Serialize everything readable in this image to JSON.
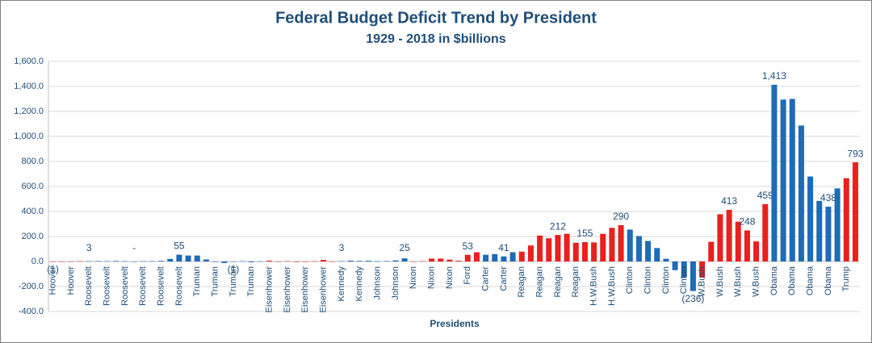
{
  "chart_data": {
    "type": "bar",
    "title": "Federal Budget Deficit Trend by President",
    "subtitle": "1929 - 2018 in $billions",
    "x_label": "Presidents",
    "categories": [
      "Hoover",
      null,
      "Hoover",
      null,
      "Roosevelt",
      null,
      "Roosevelt",
      null,
      "Roosevelt",
      null,
      "Roosevelt",
      null,
      "Roosevelt",
      null,
      "Roosevelt",
      null,
      "Truman",
      null,
      "Truman",
      null,
      "Truman",
      null,
      "Truman",
      null,
      "Eisenhower",
      null,
      "Eisenhower",
      null,
      "Eisenhower",
      null,
      "Eisenhower",
      null,
      "Kennedy",
      null,
      "Kennedy",
      null,
      "Johnson",
      null,
      "Johnson",
      null,
      "Nixon",
      null,
      "Nixon",
      null,
      "Nixon",
      null,
      "Ford",
      null,
      "Carter",
      null,
      "Carter",
      null,
      "Reagan",
      null,
      "Reagan",
      null,
      "Reagan",
      null,
      "Reagan",
      null,
      "H.W.Bush",
      null,
      "H.W.Bush",
      null,
      "Clinton",
      null,
      "Clinton",
      null,
      "Clinton",
      null,
      "Clinton",
      null,
      "W.Bush",
      null,
      "W.Bush",
      null,
      "W.Bush",
      null,
      "W.Bush",
      null,
      "Obama",
      null,
      "Obama",
      null,
      "Obama",
      null,
      "Obama",
      null,
      "Trump",
      null
    ],
    "values": [
      -0.7,
      -0.7,
      0.5,
      2.7,
      2.6,
      3.6,
      2.8,
      4.3,
      2.2,
      0.1,
      2.8,
      2.9,
      4.9,
      20.5,
      54.6,
      47.6,
      47.6,
      15.9,
      -4.0,
      -11.8,
      -0.6,
      3.1,
      -6.1,
      1.5,
      6.5,
      1.2,
      3.0,
      -3.9,
      -3.4,
      2.8,
      12.8,
      -0.3,
      3.3,
      7.1,
      4.8,
      5.9,
      1.4,
      3.7,
      8.6,
      25.2,
      -3.2,
      2.8,
      23.0,
      23.4,
      14.9,
      6.1,
      53.2,
      73.7,
      53.7,
      59.2,
      40.7,
      73.8,
      79.0,
      128.0,
      207.8,
      185.4,
      212.3,
      221.2,
      149.7,
      155.2,
      152.6,
      221.0,
      269.2,
      290.3,
      255.1,
      203.2,
      164.0,
      107.4,
      21.9,
      -69.3,
      -125.6,
      -236.2,
      -128.2,
      157.8,
      377.6,
      412.7,
      318.3,
      248.2,
      160.7,
      458.6,
      1412.7,
      1294.4,
      1299.6,
      1087.0,
      679.5,
      484.6,
      438.4,
      584.7,
      665.4,
      793
    ],
    "value_labels": [
      "(1)",
      null,
      null,
      null,
      "3",
      null,
      null,
      null,
      null,
      "-",
      null,
      null,
      null,
      null,
      "55",
      null,
      null,
      null,
      null,
      null,
      "(1)",
      null,
      null,
      null,
      null,
      null,
      null,
      null,
      null,
      null,
      null,
      null,
      "3",
      null,
      null,
      null,
      null,
      null,
      null,
      "25",
      null,
      null,
      null,
      null,
      null,
      null,
      "53",
      null,
      null,
      null,
      "41",
      null,
      null,
      null,
      null,
      null,
      "212",
      null,
      null,
      "155",
      null,
      null,
      null,
      "290",
      null,
      null,
      null,
      null,
      null,
      null,
      null,
      "(236)",
      null,
      null,
      null,
      "413",
      null,
      "248",
      null,
      "459",
      "1,413",
      null,
      null,
      null,
      null,
      null,
      "438",
      null,
      null,
      "793"
    ],
    "colors": [
      "#e8201e",
      "#e8201e",
      "#e8201e",
      "#e8201e",
      "#1e6bb8",
      "#1e6bb8",
      "#1e6bb8",
      "#1e6bb8",
      "#1e6bb8",
      "#1e6bb8",
      "#1e6bb8",
      "#1e6bb8",
      "#1e6bb8",
      "#1e6bb8",
      "#1e6bb8",
      "#1e6bb8",
      "#1e6bb8",
      "#1e6bb8",
      "#1e6bb8",
      "#1e6bb8",
      "#1e6bb8",
      "#1e6bb8",
      "#1e6bb8",
      "#1e6bb8",
      "#e8201e",
      "#e8201e",
      "#e8201e",
      "#e8201e",
      "#e8201e",
      "#e8201e",
      "#e8201e",
      "#e8201e",
      "#1e6bb8",
      "#1e6bb8",
      "#1e6bb8",
      "#1e6bb8",
      "#1e6bb8",
      "#1e6bb8",
      "#1e6bb8",
      "#1e6bb8",
      "#e8201e",
      "#e8201e",
      "#e8201e",
      "#e8201e",
      "#e8201e",
      "#e8201e",
      "#e8201e",
      "#e8201e",
      "#1e6bb8",
      "#1e6bb8",
      "#1e6bb8",
      "#1e6bb8",
      "#e8201e",
      "#e8201e",
      "#e8201e",
      "#e8201e",
      "#e8201e",
      "#e8201e",
      "#e8201e",
      "#e8201e",
      "#e8201e",
      "#e8201e",
      "#e8201e",
      "#e8201e",
      "#1e6bb8",
      "#1e6bb8",
      "#1e6bb8",
      "#1e6bb8",
      "#1e6bb8",
      "#1e6bb8",
      "#1e6bb8",
      "#1e6bb8",
      "#e8201e",
      "#e8201e",
      "#e8201e",
      "#e8201e",
      "#e8201e",
      "#e8201e",
      "#e8201e",
      "#e8201e",
      "#1e6bb8",
      "#1e6bb8",
      "#1e6bb8",
      "#1e6bb8",
      "#1e6bb8",
      "#1e6bb8",
      "#1e6bb8",
      "#1e6bb8",
      "#e8201e",
      "#e8201e"
    ],
    "ylim": [
      -400,
      1600
    ],
    "yticks": [
      {
        "value": -400,
        "label": "-400.0"
      },
      {
        "value": -200,
        "label": "-200.0"
      },
      {
        "value": 0,
        "label": "0.0"
      },
      {
        "value": 200,
        "label": "200.0"
      },
      {
        "value": 400,
        "label": "400.0"
      },
      {
        "value": 600,
        "label": "600.0"
      },
      {
        "value": 800,
        "label": "800.0"
      },
      {
        "value": 1000,
        "label": "1,000.0"
      },
      {
        "value": 1200,
        "label": "1,200.0"
      },
      {
        "value": 1400,
        "label": "1,400.0"
      },
      {
        "value": 1600,
        "label": "1,600.0"
      }
    ],
    "grid": true
  }
}
